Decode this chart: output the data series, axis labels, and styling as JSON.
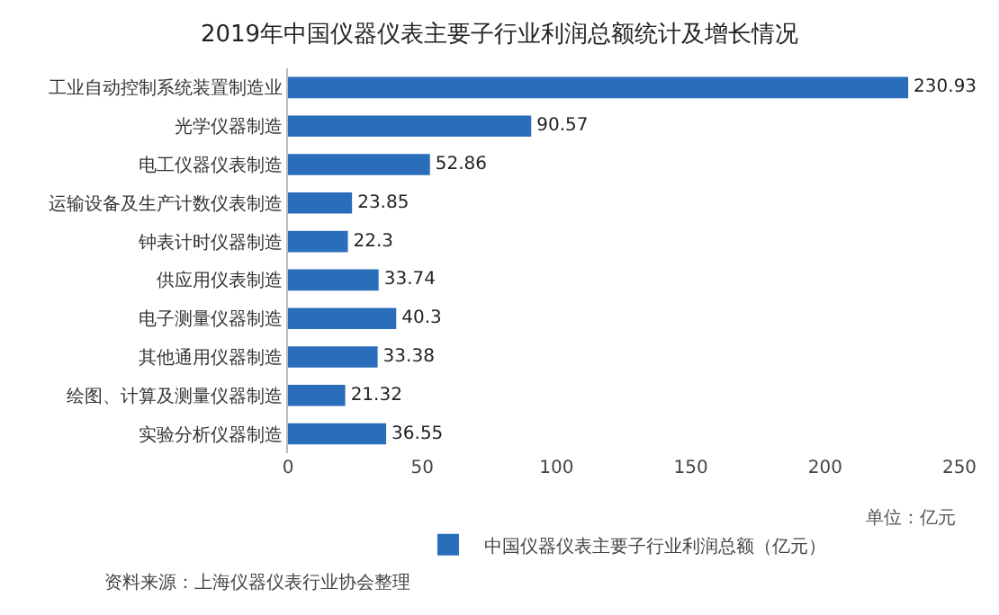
{
  "chart_data": {
    "type": "bar",
    "orientation": "horizontal",
    "title": "2019年中国仪器仪表主要子行业利润总额统计及增长情况",
    "categories": [
      "工业自动控制系统装置制造业",
      "光学仪器制造",
      "电工仪器仪表制造",
      "运输设备及生产计数仪表制造",
      "钟表计时仪器制造",
      "供应用仪表制造",
      "电子测量仪器制造",
      "其他通用仪器制造",
      "绘图、计算及测量仪器制造",
      "实验分析仪器制造"
    ],
    "series": [
      {
        "name": "中国仪器仪表主要子行业利润总额（亿元）",
        "color": "#2a6ebb",
        "values": [
          230.93,
          90.57,
          52.86,
          23.85,
          22.3,
          33.74,
          40.3,
          33.38,
          21.32,
          36.55
        ]
      }
    ],
    "data_labels": true,
    "xlim": [
      0,
      250
    ],
    "xticks": [
      0,
      50,
      100,
      150,
      200,
      250
    ],
    "grid": false,
    "legend": "bottom",
    "annotations": [
      "单位：亿元",
      "资料来源：上海仪器仪表行业协会整理"
    ]
  }
}
